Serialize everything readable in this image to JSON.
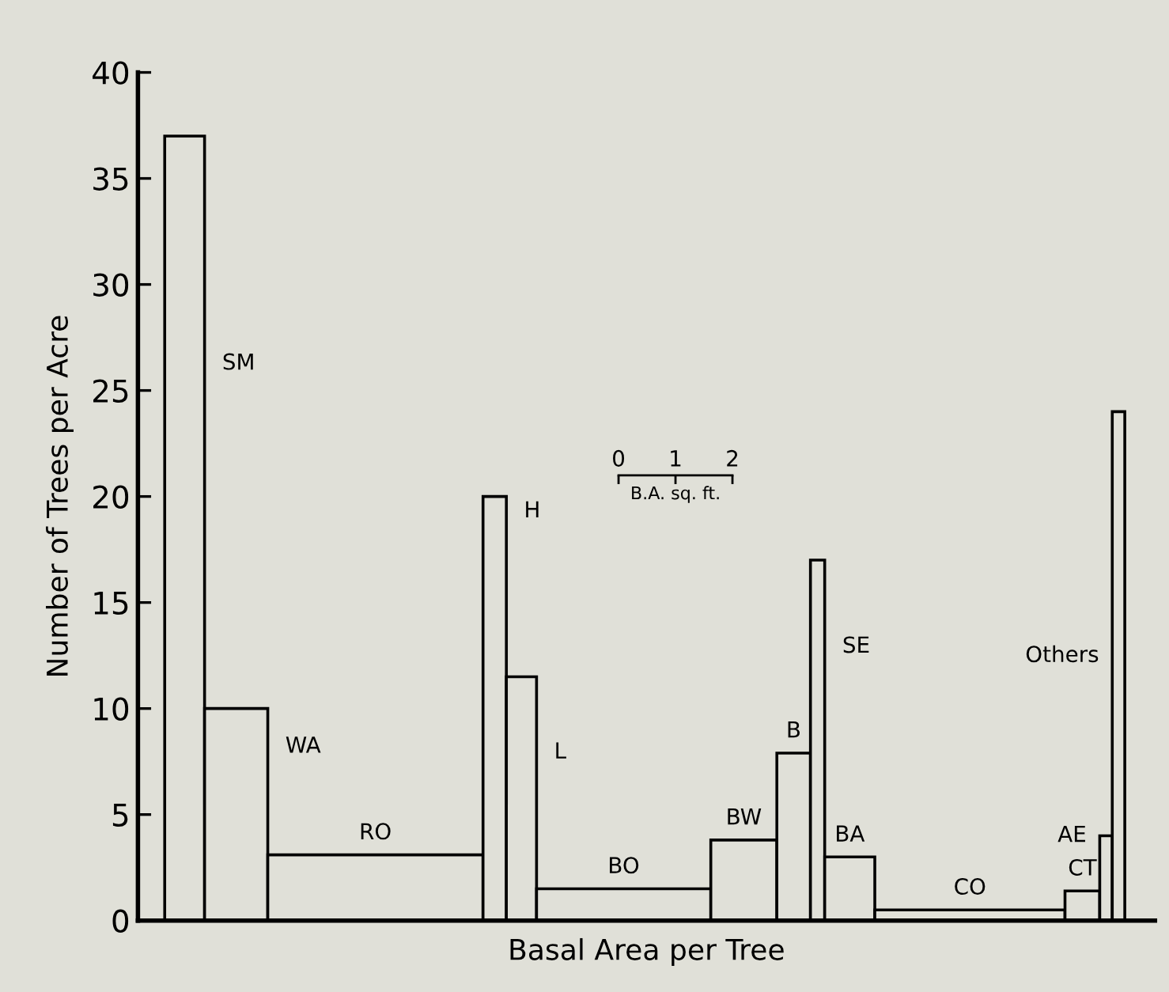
{
  "chart_data": {
    "type": "histogram",
    "xlabel": "Basal Area per Tree",
    "ylabel": "Number of Trees per Acre",
    "bins": [
      -7.97,
      -7.27,
      -6.16,
      -2.38,
      -1.97,
      -1.44,
      1.62,
      2.78,
      3.37,
      3.62,
      4.5,
      7.84,
      8.45,
      8.67,
      8.89
    ],
    "values": [
      37,
      10,
      3.1,
      20,
      11.5,
      1.5,
      3.8,
      7.9,
      17,
      3,
      0.5,
      1.4,
      4,
      24
    ],
    "color": "#e0e0d8",
    "xlim": [
      -8.44,
      9.42
    ],
    "xticks": [
      0,
      1,
      2
    ],
    "ylim": [
      0,
      40
    ],
    "yticks": [
      0,
      5,
      10,
      15,
      20,
      25,
      30,
      35,
      40
    ],
    "grid": false,
    "annotations": [
      "B.A. sq. ft.",
      "SM",
      "WA",
      "RO",
      "H",
      "L",
      "BO",
      "BW",
      "B",
      "SE",
      "BA",
      "CO",
      "CT",
      "AE",
      "Others"
    ]
  }
}
